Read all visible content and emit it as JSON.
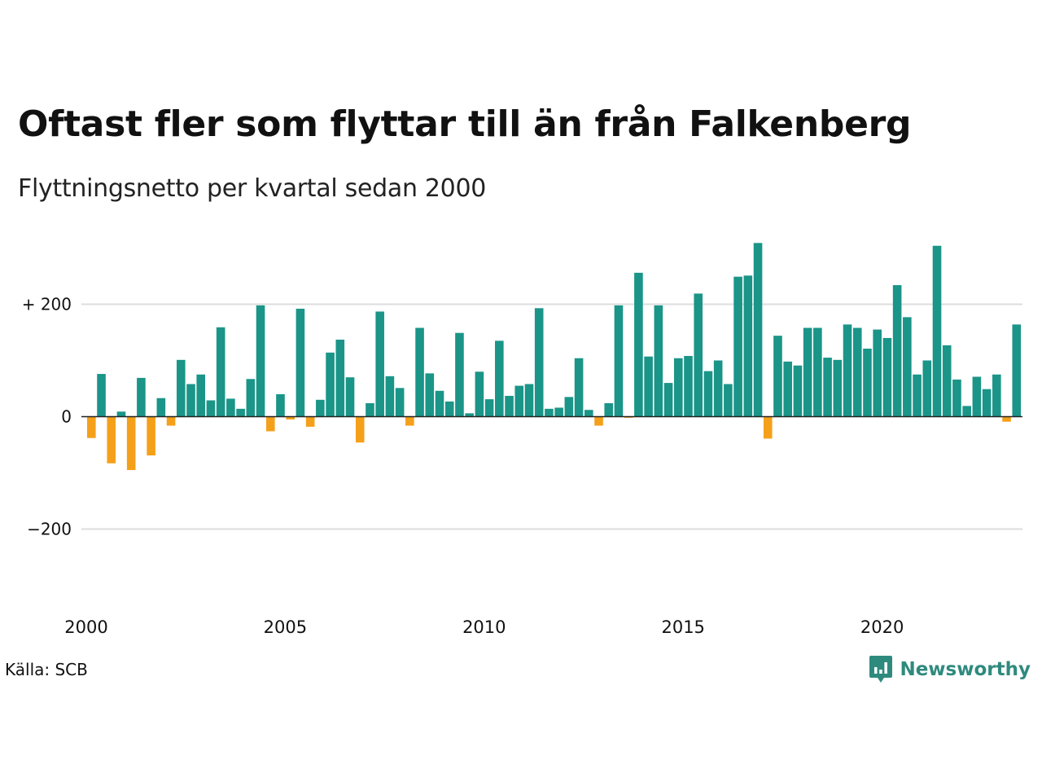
{
  "title": "Oftast fler som flyttar till än från Falkenberg",
  "subtitle": "Flyttningsnetto per kvartal sedan 2000",
  "source": "Källa: SCB",
  "brand": {
    "name": "Newsworthy",
    "icon": "newsworthy-logo-icon"
  },
  "colors": {
    "positive": "#1a9588",
    "negative": "#f5a01a",
    "grid": "#dddddd",
    "zero_line": "#222222",
    "brand": "#2f8a7e"
  },
  "chart_data": {
    "type": "bar",
    "x_start": "2000-Q1",
    "period": "quarter",
    "ylim": [
      -300,
      310
    ],
    "yticks": [
      {
        "value": 200,
        "label": "+ 200"
      },
      {
        "value": 0,
        "label": "0"
      },
      {
        "value": -200,
        "label": "−200"
      }
    ],
    "xticks": [
      {
        "year": 2000,
        "label": "2000"
      },
      {
        "year": 2005,
        "label": "2005"
      },
      {
        "year": 2010,
        "label": "2010"
      },
      {
        "year": 2015,
        "label": "2015"
      },
      {
        "year": 2020,
        "label": "2020"
      }
    ],
    "grid": true,
    "values": [
      -38,
      76,
      -83,
      9,
      -95,
      69,
      -69,
      33,
      -16,
      101,
      58,
      75,
      29,
      159,
      32,
      14,
      67,
      198,
      -26,
      40,
      -5,
      192,
      -18,
      30,
      114,
      137,
      70,
      -46,
      24,
      187,
      72,
      51,
      -16,
      158,
      77,
      46,
      27,
      149,
      6,
      80,
      31,
      135,
      37,
      55,
      58,
      193,
      14,
      16,
      35,
      104,
      12,
      -16,
      24,
      198,
      -2,
      256,
      107,
      198,
      60,
      104,
      108,
      219,
      81,
      100,
      58,
      249,
      251,
      309,
      -39,
      144,
      98,
      91,
      158,
      158,
      105,
      101,
      164,
      158,
      121,
      155,
      140,
      234,
      177,
      75,
      100,
      304,
      127,
      66,
      19,
      71,
      49,
      75,
      -9,
      164
    ]
  }
}
